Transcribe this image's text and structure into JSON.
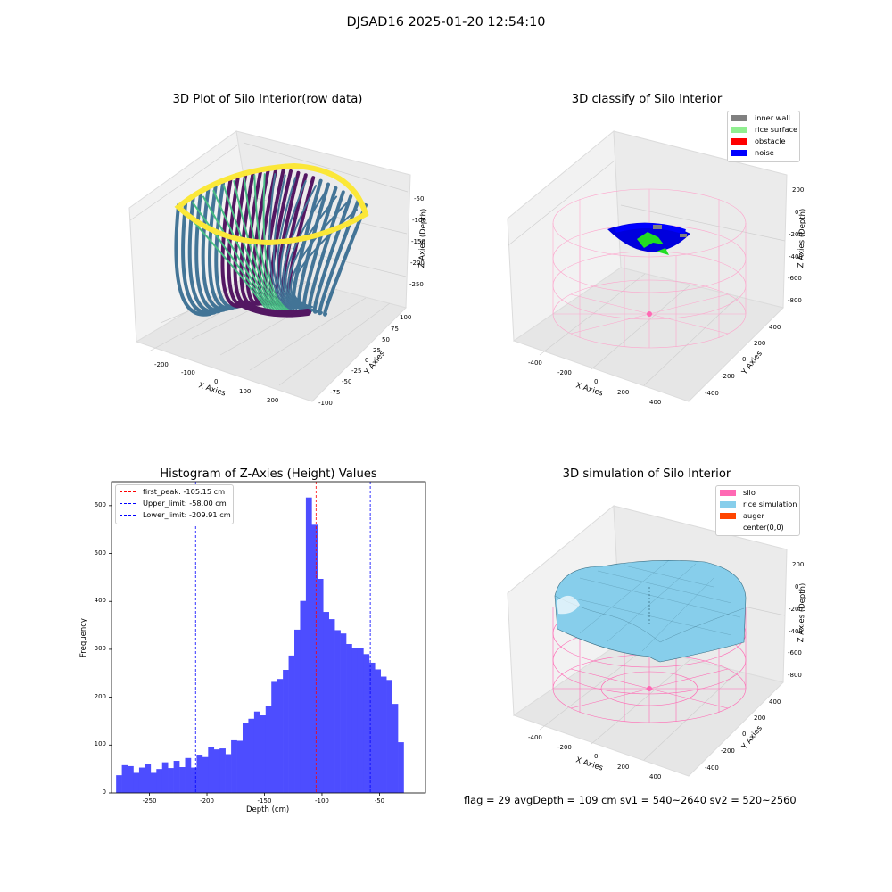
{
  "suptitle": "DJSAD16 2025-01-20 12:54:10",
  "panels": {
    "raw": {
      "title": "3D Plot of Silo Interior(row data)",
      "xlabel": "X Axies",
      "ylabel": "Y Axies",
      "zlabel": "Z Axies (Depth)",
      "xticks": [
        "-200",
        "-100",
        "0",
        "100",
        "200"
      ],
      "yticks": [
        "100",
        "75",
        "50",
        "25",
        "0",
        "-25",
        "-50",
        "-75",
        "-100"
      ],
      "zticks": [
        "-50",
        "-100",
        "-150",
        "-200",
        "-250"
      ],
      "colormap": [
        "#440154",
        "#31688e",
        "#35b779",
        "#fde725"
      ]
    },
    "classify": {
      "title": "3D classify of Silo Interior",
      "xlabel": "X Axies",
      "ylabel": "Y Axies",
      "zlabel": "Z Axies (Depth)",
      "xticks": [
        "-400",
        "-200",
        "0",
        "200",
        "400"
      ],
      "yticks": [
        "400",
        "200",
        "0",
        "-200",
        "-400"
      ],
      "zticks": [
        "200",
        "0",
        "-200",
        "-400",
        "-600",
        "-800"
      ],
      "legend": [
        {
          "label": "inner wall",
          "color": "#808080"
        },
        {
          "label": "rice surface",
          "color": "#90ee90"
        },
        {
          "label": "obstacle",
          "color": "#ff0000"
        },
        {
          "label": "noise",
          "color": "#0000ff"
        }
      ]
    },
    "simulation": {
      "title": "3D simulation of Silo Interior",
      "xlabel": "X Axies",
      "ylabel": "Y Axies",
      "zlabel": "Z Axies (Depth)",
      "xticks": [
        "-400",
        "-200",
        "0",
        "200",
        "400"
      ],
      "yticks": [
        "400",
        "200",
        "0",
        "-200",
        "-400"
      ],
      "zticks": [
        "200",
        "0",
        "-200",
        "-400",
        "-600",
        "-800"
      ],
      "legend": [
        {
          "label": "silo",
          "color": "#ff69b4"
        },
        {
          "label": "rice simulation",
          "color": "#87ceeb"
        },
        {
          "label": "auger",
          "color": "#ff4500"
        },
        {
          "label": "center(0,0)",
          "color": "#ffffff"
        }
      ]
    }
  },
  "chart_data": [
    {
      "type": "bar",
      "title": "Histogram of Z-Axies (Height) Values",
      "xlabel": "Depth (cm)",
      "ylabel": "Frequency",
      "xlim": [
        -283,
        -10
      ],
      "ylim": [
        0,
        650
      ],
      "xticks": [
        -250,
        -200,
        -150,
        -100,
        -50
      ],
      "yticks": [
        0,
        100,
        200,
        300,
        400,
        500,
        600
      ],
      "bar_color": "#4d4dff",
      "bin_width": 5,
      "bin_start": -279,
      "values": [
        37,
        58,
        56,
        42,
        53,
        61,
        42,
        50,
        64,
        52,
        67,
        54,
        73,
        53,
        80,
        75,
        95,
        91,
        93,
        81,
        110,
        109,
        147,
        155,
        170,
        162,
        182,
        232,
        238,
        257,
        287,
        341,
        401,
        617,
        560,
        447,
        378,
        363,
        340,
        333,
        311,
        303,
        302,
        290,
        272,
        258,
        243,
        236,
        186,
        106
      ],
      "vlines": [
        {
          "label": "first_peak: -105.15 cm",
          "x": -105.15,
          "color": "#ff0000"
        },
        {
          "label": "Upper_limit: -58.00 cm",
          "x": -58.0,
          "color": "#0000ff"
        },
        {
          "label": "Lower_limit: -209.91 cm",
          "x": -209.91,
          "color": "#0000ff"
        }
      ]
    }
  ],
  "footer": "flag = 29  avgDepth = 109 cm  sv1 = 540~2640  sv2 = 520~2560"
}
